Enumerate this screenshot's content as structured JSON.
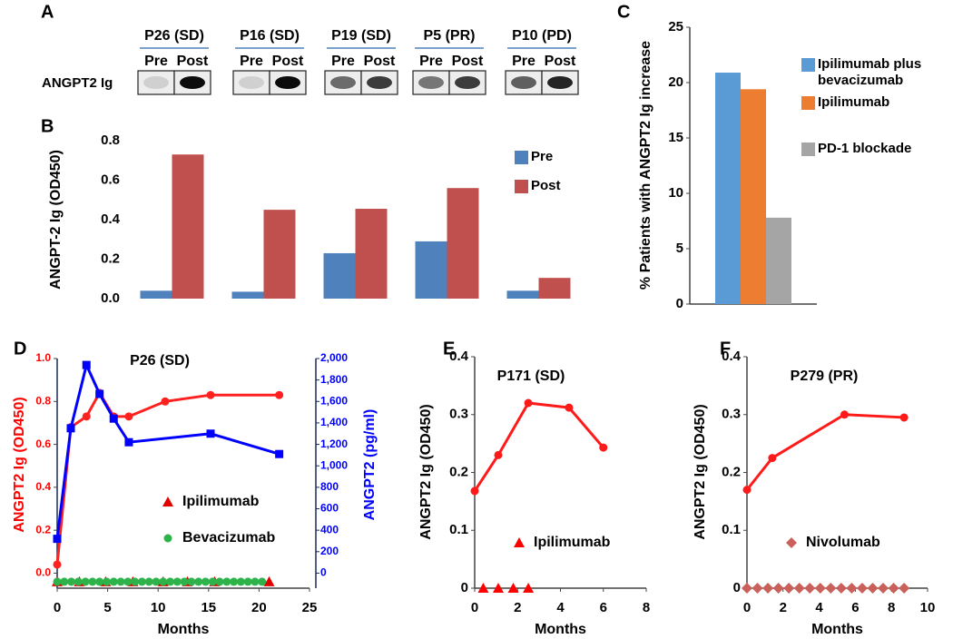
{
  "blot": {
    "panel_label": "A",
    "row_label": "ANGPT2 Ig",
    "samples": [
      {
        "name": "P26 (SD)",
        "lanes": [
          "Pre",
          "Post"
        ]
      },
      {
        "name": "P16 (SD)",
        "lanes": [
          "Pre",
          "Post"
        ]
      },
      {
        "name": "P19 (SD)",
        "lanes": [
          "Pre",
          "Post"
        ]
      },
      {
        "name": "P5 (PR)",
        "lanes": [
          "Pre",
          "Post"
        ]
      },
      {
        "name": "P10  (PD)",
        "lanes": [
          "Pre",
          "Post"
        ]
      }
    ]
  },
  "chart_data": [
    {
      "type": "bar",
      "panel_label": "B",
      "ylabel": "ANGPT-2 Ig (OD450)",
      "categories": [
        null,
        null,
        null,
        null,
        null
      ],
      "series": [
        {
          "name": "Pre",
          "color": "#4f81bd",
          "values": [
            0.04,
            0.035,
            0.23,
            0.29,
            0.04
          ]
        },
        {
          "name": "Post",
          "color": "#c0504d",
          "values": [
            0.73,
            0.45,
            0.455,
            0.56,
            0.105
          ]
        }
      ],
      "ylim": [
        0,
        0.8
      ],
      "yticks": [
        {
          "value": 0,
          "label": "0.0"
        },
        0.2,
        0.4,
        0.6,
        0.8
      ]
    },
    {
      "type": "bar",
      "panel_label": "C",
      "ylabel": "% Patients with ANGPT2 Ig increase",
      "categories": [
        null
      ],
      "series": [
        {
          "name": "Ipilimumab plus bevacizumab",
          "color": "#5b9bd5",
          "values": [
            20.9
          ]
        },
        {
          "name": "Ipilimumab",
          "color": "#ed7d31",
          "values": [
            19.4
          ]
        },
        {
          "name": "PD-1 blockade",
          "color": "#a5a5a5",
          "values": [
            7.8
          ]
        }
      ],
      "ylim": [
        0,
        25
      ],
      "yticks": [
        0,
        5,
        10,
        15,
        20,
        25
      ]
    },
    {
      "type": "line",
      "panel_label": "D",
      "title": "P26 (SD)",
      "xlabel": "Months",
      "ylabel": "ANGPT2 Ig (OD450)",
      "ylabel_color": "#ff0000",
      "y2label": "ANGPT2 (pg/ml)",
      "y2label_color": "#0000ff",
      "xlim": [
        0,
        25
      ],
      "xticks": [
        0,
        5,
        10,
        15,
        20,
        25
      ],
      "ylim": [
        -0.07,
        1
      ],
      "yticks": [
        {
          "value": 0,
          "label": "0.0"
        },
        0.2,
        0.4,
        0.6,
        0.8,
        {
          "value": 1,
          "label": "1.0"
        }
      ],
      "y2lim": [
        -140,
        2000
      ],
      "y2ticks": [
        0,
        200,
        400,
        600,
        800,
        {
          "value": 1000,
          "label": "1,000"
        },
        {
          "value": 1200,
          "label": "1,200"
        },
        {
          "value": 1400,
          "label": "1,400"
        },
        {
          "value": 1600,
          "label": "1,600"
        },
        {
          "value": 1800,
          "label": "1,800"
        },
        {
          "value": 2000,
          "label": "2,000"
        }
      ],
      "series": [
        {
          "color": "#ff2020",
          "marker": "circle",
          "line": true,
          "x": [
            0,
            1.35,
            2.9,
            4.2,
            5.6,
            7.1,
            10.7,
            15.2,
            22
          ],
          "values": [
            0.04,
            0.68,
            0.73,
            0.84,
            0.73,
            0.73,
            0.8,
            0.83,
            0.83
          ]
        },
        {
          "color": "#0000ff",
          "marker": "square",
          "line": true,
          "axis": "y2",
          "x": [
            0,
            1.35,
            2.9,
            4.2,
            5.6,
            7.1,
            15.2,
            22
          ],
          "values": [
            320,
            1350,
            1940,
            1670,
            1440,
            1220,
            1300,
            1110
          ]
        },
        {
          "name": "Ipilimumab",
          "color": "#e00000",
          "marker": "triangle",
          "line": false,
          "x": [
            0,
            2.2,
            4.8,
            7.5,
            10.5,
            12.9,
            15.6,
            21
          ],
          "values": [
            -0.04,
            -0.04,
            -0.04,
            -0.04,
            -0.04,
            -0.04,
            -0.04,
            -0.04
          ]
        },
        {
          "name": "Bevacizumab",
          "color": "#2db34a",
          "marker": "circle",
          "line": false,
          "x": [
            0,
            0.7,
            1.4,
            2.1,
            2.8,
            3.5,
            4.2,
            4.9,
            5.6,
            6.3,
            7,
            7.7,
            8.4,
            9.1,
            9.8,
            10.5,
            11.2,
            11.9,
            12.6,
            13.3,
            14,
            14.7,
            15.4,
            16.1,
            16.8,
            17.5,
            18.2,
            18.9,
            19.6,
            20.3
          ],
          "values": [
            -0.04,
            -0.04,
            -0.04,
            -0.04,
            -0.04,
            -0.04,
            -0.04,
            -0.04,
            -0.04,
            -0.04,
            -0.04,
            -0.04,
            -0.04,
            -0.04,
            -0.04,
            -0.04,
            -0.04,
            -0.04,
            -0.04,
            -0.04,
            -0.04,
            -0.04,
            -0.04,
            -0.04,
            -0.04,
            -0.04,
            -0.04,
            -0.04,
            -0.04,
            -0.04
          ]
        }
      ]
    },
    {
      "type": "line",
      "panel_label": "E",
      "title": "P171 (SD)",
      "xlabel": "Months",
      "ylabel": "ANGPT2 Ig (OD450)",
      "xlim": [
        0,
        8
      ],
      "xticks": [
        0,
        2,
        4,
        6,
        8
      ],
      "ylim": [
        0,
        0.4
      ],
      "yticks": [
        0,
        0.1,
        0.2,
        0.3,
        0.4
      ],
      "series": [
        {
          "color": "#ff1a1a",
          "marker": "circle",
          "line": true,
          "x": [
            0,
            1.1,
            2.5,
            4.4,
            6
          ],
          "values": [
            0.168,
            0.23,
            0.32,
            0.312,
            0.243
          ]
        },
        {
          "name": "Ipilimumab",
          "color": "#ff0000",
          "marker": "triangle",
          "line": false,
          "x": [
            0.4,
            1.1,
            1.8,
            2.5
          ],
          "values": [
            0,
            0,
            0,
            0
          ]
        }
      ]
    },
    {
      "type": "line",
      "panel_label": "F",
      "title": "P279 (PR)",
      "xlabel": "Months",
      "ylabel": "ANGPT2 Ig (OD450)",
      "xlim": [
        0,
        10
      ],
      "xticks": [
        0,
        2,
        4,
        6,
        8,
        10
      ],
      "ylim": [
        0,
        0.4
      ],
      "yticks": [
        0,
        0.1,
        0.2,
        0.3,
        0.4
      ],
      "series": [
        {
          "color": "#ff1a1a",
          "marker": "circle",
          "line": true,
          "x": [
            0,
            1.4,
            5.4,
            8.7
          ],
          "values": [
            0.17,
            0.225,
            0.3,
            0.295
          ]
        },
        {
          "name": "Nivolumab",
          "color": "#c9605a",
          "marker": "diamond",
          "line": false,
          "x": [
            0,
            0.58,
            1.16,
            1.74,
            2.32,
            2.9,
            3.48,
            4.06,
            4.64,
            5.22,
            5.8,
            6.38,
            6.96,
            7.54,
            8.12,
            8.7
          ],
          "values": [
            0,
            0,
            0,
            0,
            0,
            0,
            0,
            0,
            0,
            0,
            0,
            0,
            0,
            0,
            0,
            0
          ]
        }
      ]
    }
  ]
}
